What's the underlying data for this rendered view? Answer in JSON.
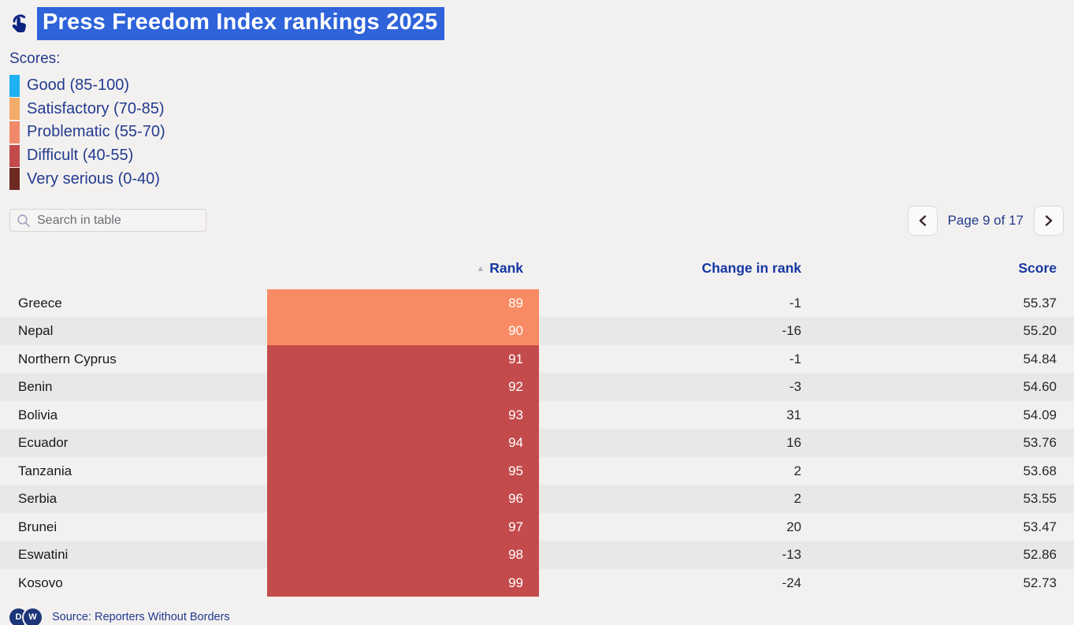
{
  "title": {
    "text": "Press Freedom Index rankings 2025"
  },
  "legend": {
    "label": "Scores:",
    "items": [
      {
        "label": "Good (85-100)",
        "color": "#1fb1f1"
      },
      {
        "label": "Satisfactory (70-85)",
        "color": "#f3ab69"
      },
      {
        "label": "Problematic (55-70)",
        "color": "#f0896a"
      },
      {
        "label": "Difficult (40-55)",
        "color": "#c44b4c"
      },
      {
        "label": "Very serious (0-40)",
        "color": "#6d2a22"
      }
    ]
  },
  "search": {
    "placeholder": "Search in table"
  },
  "pagination": {
    "label": "Page 9 of 17"
  },
  "colors": {
    "rank_problematic": "#f98b64",
    "rank_difficult": "#c44b4c"
  },
  "table": {
    "sort_indicator": "▲",
    "columns": [
      {
        "label": ""
      },
      {
        "label": "Rank"
      },
      {
        "label": "Change in rank"
      },
      {
        "label": "Score"
      }
    ],
    "rows": [
      {
        "country": "Greece",
        "rank": "89",
        "category": "problematic",
        "change": "-1",
        "score": "55.37"
      },
      {
        "country": "Nepal",
        "rank": "90",
        "category": "problematic",
        "change": "-16",
        "score": "55.20"
      },
      {
        "country": "Northern Cyprus",
        "rank": "91",
        "category": "difficult",
        "change": "-1",
        "score": "54.84"
      },
      {
        "country": "Benin",
        "rank": "92",
        "category": "difficult",
        "change": "-3",
        "score": "54.60"
      },
      {
        "country": "Bolivia",
        "rank": "93",
        "category": "difficult",
        "change": "31",
        "score": "54.09"
      },
      {
        "country": "Ecuador",
        "rank": "94",
        "category": "difficult",
        "change": "16",
        "score": "53.76"
      },
      {
        "country": "Tanzania",
        "rank": "95",
        "category": "difficult",
        "change": "2",
        "score": "53.68"
      },
      {
        "country": "Serbia",
        "rank": "96",
        "category": "difficult",
        "change": "2",
        "score": "53.55"
      },
      {
        "country": "Brunei",
        "rank": "97",
        "category": "difficult",
        "change": "20",
        "score": "53.47"
      },
      {
        "country": "Eswatini",
        "rank": "98",
        "category": "difficult",
        "change": "-13",
        "score": "52.86"
      },
      {
        "country": "Kosovo",
        "rank": "99",
        "category": "difficult",
        "change": "-24",
        "score": "52.73"
      }
    ]
  },
  "footer": {
    "logo_letters": [
      "D",
      "W"
    ],
    "source": "Source: Reporters Without Borders"
  }
}
